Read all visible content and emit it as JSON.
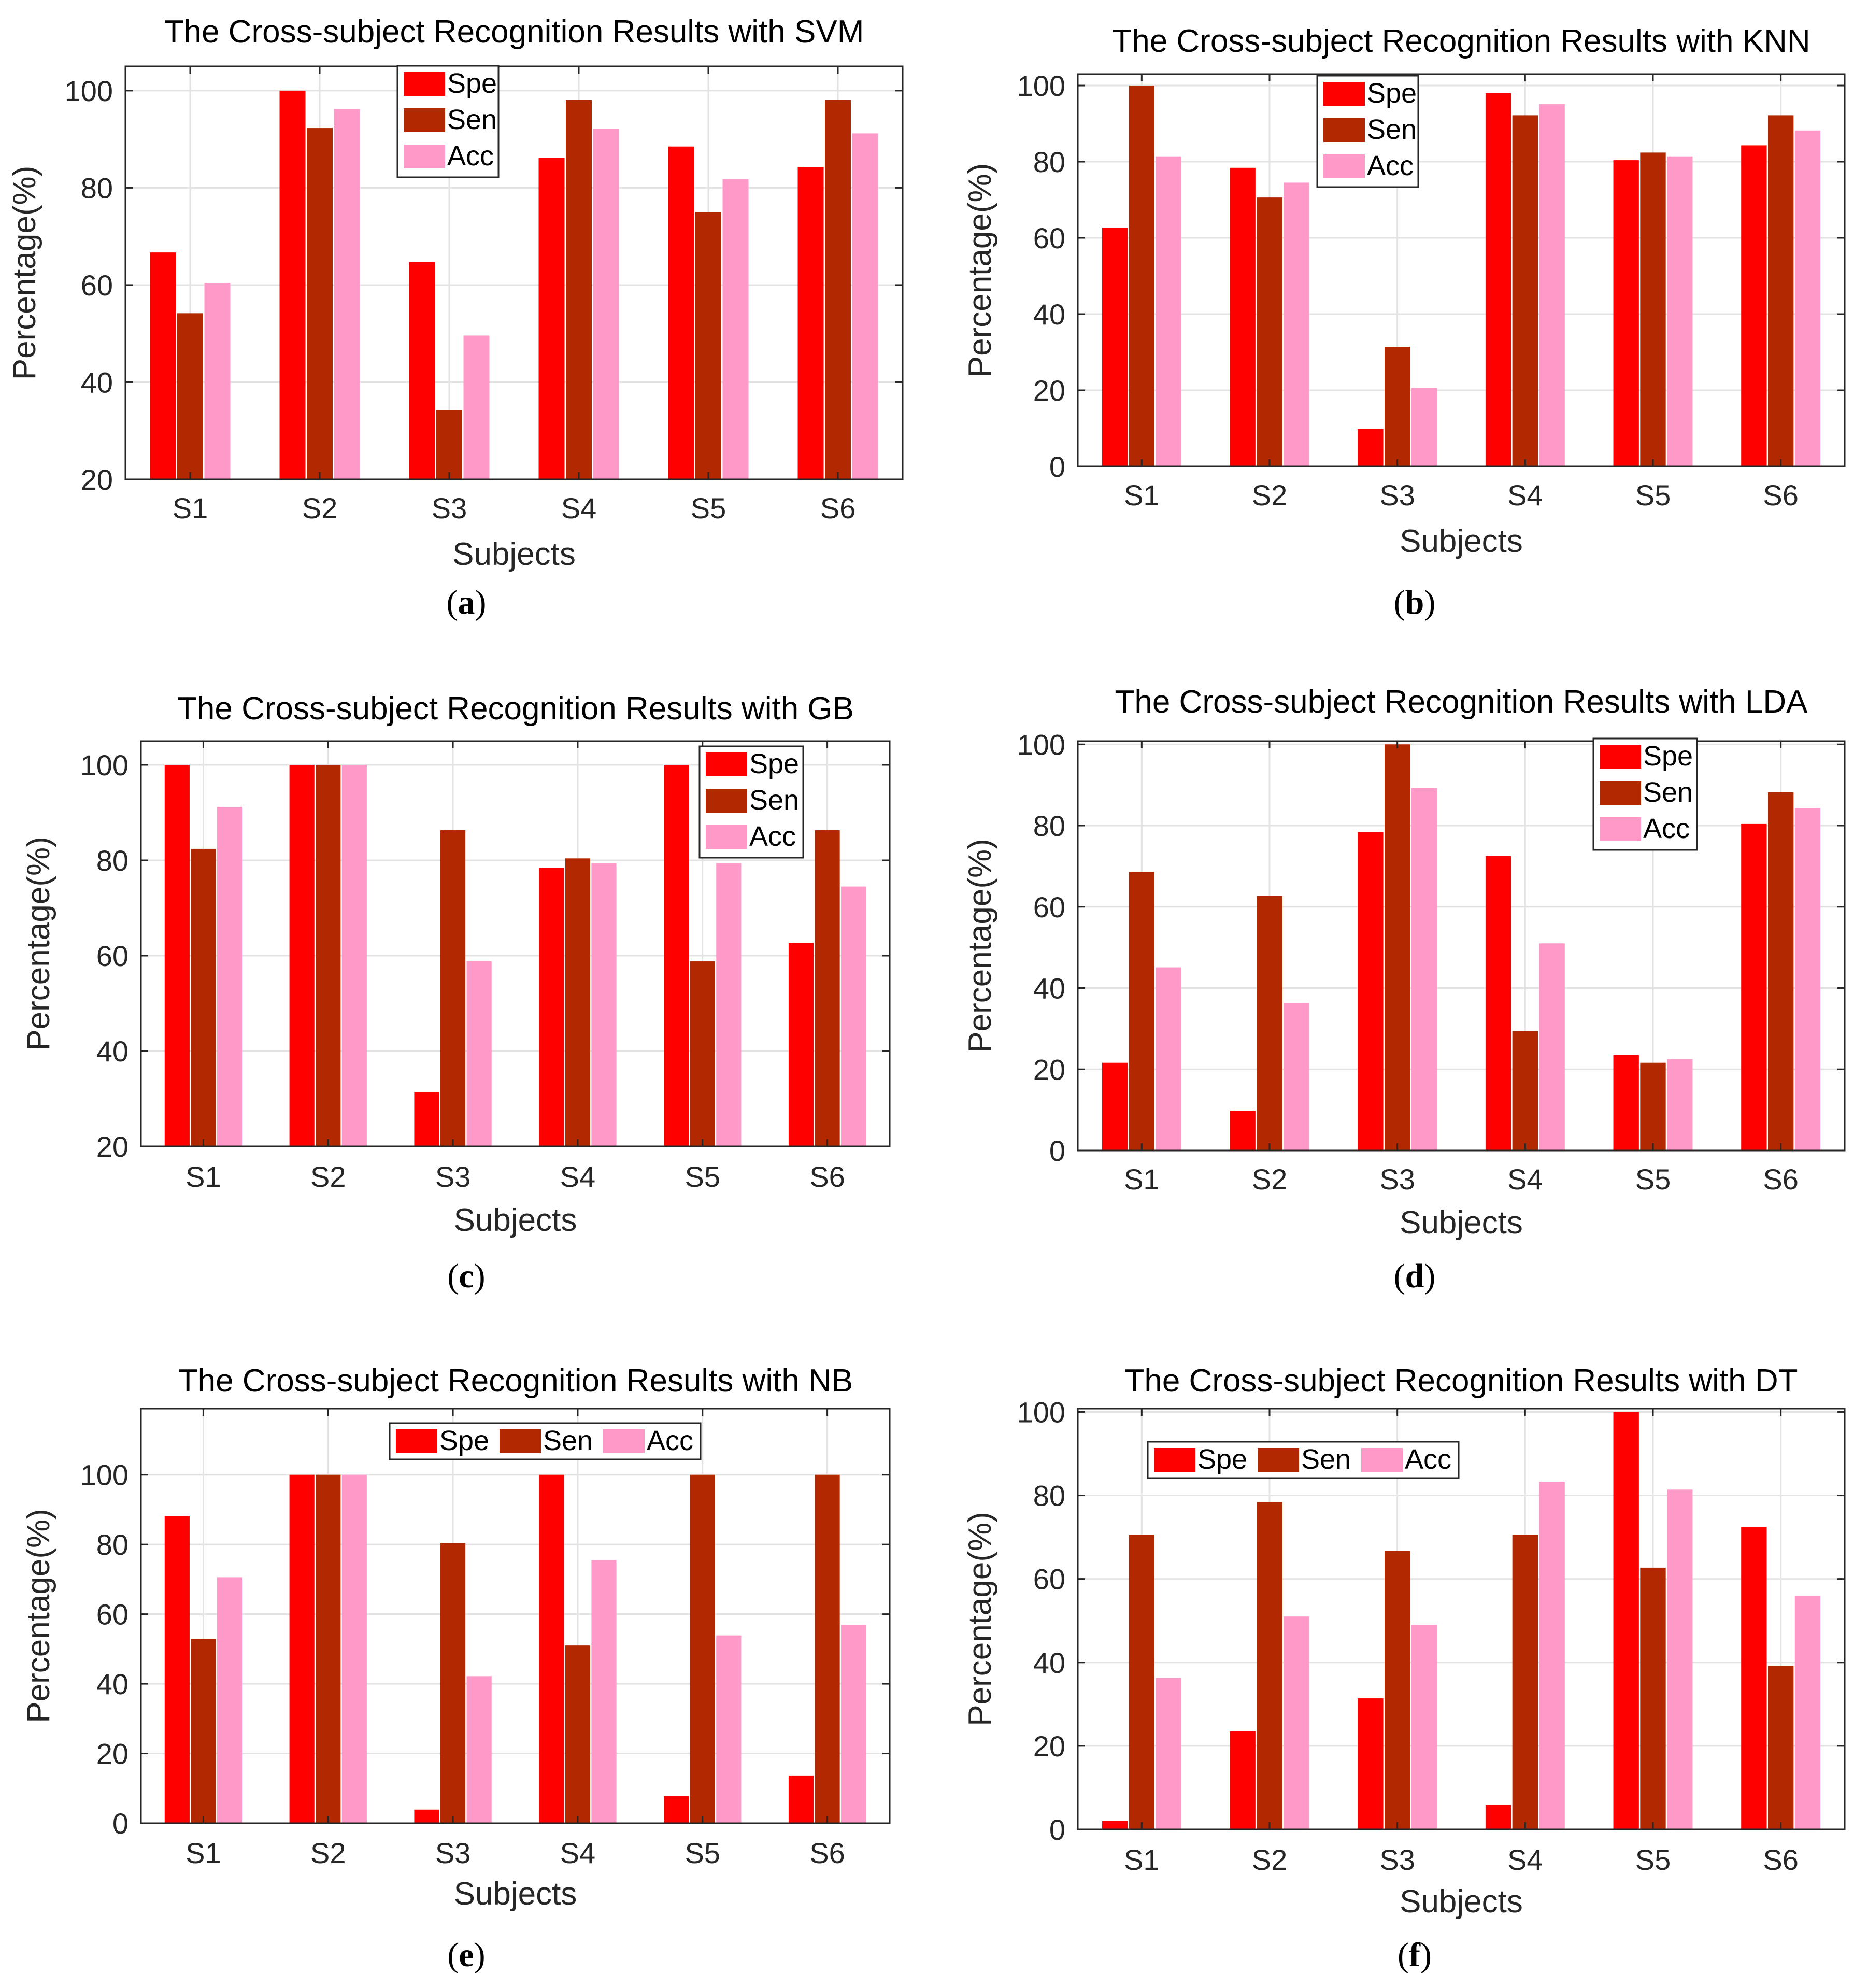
{
  "chart_data": [
    {
      "type": "bar",
      "panel_label": "a",
      "title": "The Cross-subject Recognition Results with SVM",
      "xlabel": "Subjects",
      "ylabel": "Percentage(%)",
      "categories": [
        "S1",
        "S2",
        "S3",
        "S4",
        "S5",
        "S6"
      ],
      "ylim": [
        20,
        105
      ],
      "yticks": [
        20,
        40,
        60,
        80,
        100
      ],
      "legend": {
        "orientation": "vertical",
        "placement": "top-center"
      },
      "series": [
        {
          "name": "Spe",
          "color": "#ff0000",
          "values": [
            66.7,
            100,
            64.7,
            86.2,
            88.5,
            84.3
          ]
        },
        {
          "name": "Sen",
          "color": "#b22800",
          "values": [
            54.2,
            92.3,
            34.2,
            98.1,
            75.0,
            98.1
          ]
        },
        {
          "name": "Acc",
          "color": "#ff99c8",
          "values": [
            60.4,
            96.2,
            49.6,
            92.2,
            81.8,
            91.2
          ]
        }
      ]
    },
    {
      "type": "bar",
      "panel_label": "b",
      "title": "The Cross-subject Recognition Results with KNN",
      "xlabel": "Subjects",
      "ylabel": "Percentage(%)",
      "categories": [
        "S1",
        "S2",
        "S3",
        "S4",
        "S5",
        "S6"
      ],
      "ylim": [
        0,
        103
      ],
      "yticks": [
        0,
        20,
        40,
        60,
        80,
        100
      ],
      "legend": {
        "orientation": "vertical",
        "placement": "top-center"
      },
      "series": [
        {
          "name": "Spe",
          "color": "#ff0000",
          "values": [
            62.7,
            78.4,
            9.8,
            98.0,
            80.4,
            84.3
          ]
        },
        {
          "name": "Sen",
          "color": "#b22800",
          "values": [
            100,
            70.6,
            31.4,
            92.2,
            82.4,
            92.2
          ]
        },
        {
          "name": "Acc",
          "color": "#ff99c8",
          "values": [
            81.4,
            74.5,
            20.6,
            95.1,
            81.4,
            88.2
          ]
        }
      ]
    },
    {
      "type": "bar",
      "panel_label": "c",
      "title": "The Cross-subject Recognition Results with GB",
      "xlabel": "Subjects",
      "ylabel": "Percentage(%)",
      "categories": [
        "S1",
        "S2",
        "S3",
        "S4",
        "S5",
        "S6"
      ],
      "ylim": [
        20,
        105
      ],
      "yticks": [
        20,
        40,
        60,
        80,
        100
      ],
      "legend": {
        "orientation": "vertical",
        "placement": "top-right"
      },
      "series": [
        {
          "name": "Spe",
          "color": "#ff0000",
          "values": [
            100,
            100,
            31.4,
            78.4,
            100,
            62.7
          ]
        },
        {
          "name": "Sen",
          "color": "#b22800",
          "values": [
            82.4,
            100,
            86.3,
            80.4,
            58.8,
            86.3
          ]
        },
        {
          "name": "Acc",
          "color": "#ff99c8",
          "values": [
            91.2,
            100,
            58.8,
            79.4,
            79.4,
            74.5
          ]
        }
      ]
    },
    {
      "type": "bar",
      "panel_label": "d",
      "title": "The Cross-subject Recognition Results with LDA",
      "xlabel": "Subjects",
      "ylabel": "Percentage(%)",
      "categories": [
        "S1",
        "S2",
        "S3",
        "S4",
        "S5",
        "S6"
      ],
      "ylim": [
        0,
        100.8
      ],
      "yticks": [
        0,
        20,
        40,
        60,
        80,
        100
      ],
      "legend": {
        "orientation": "vertical",
        "placement": "top-right"
      },
      "series": [
        {
          "name": "Spe",
          "color": "#ff0000",
          "values": [
            21.6,
            9.8,
            78.4,
            72.5,
            23.5,
            80.4
          ]
        },
        {
          "name": "Sen",
          "color": "#b22800",
          "values": [
            68.6,
            62.7,
            100,
            29.4,
            21.6,
            88.2
          ]
        },
        {
          "name": "Acc",
          "color": "#ff99c8",
          "values": [
            45.1,
            36.3,
            89.2,
            51.0,
            22.5,
            84.3
          ]
        }
      ]
    },
    {
      "type": "bar",
      "panel_label": "e",
      "title": "The Cross-subject Recognition Results with NB",
      "xlabel": "Subjects",
      "ylabel": "Percentage(%)",
      "categories": [
        "S1",
        "S2",
        "S3",
        "S4",
        "S5",
        "S6"
      ],
      "ylim": [
        0,
        119
      ],
      "yticks": [
        0,
        20,
        40,
        60,
        80,
        100
      ],
      "legend": {
        "orientation": "horizontal",
        "placement": "top-center"
      },
      "series": [
        {
          "name": "Spe",
          "color": "#ff0000",
          "values": [
            88.2,
            100,
            3.9,
            100,
            7.8,
            13.7
          ]
        },
        {
          "name": "Sen",
          "color": "#b22800",
          "values": [
            52.9,
            100,
            80.4,
            51.0,
            100,
            100
          ]
        },
        {
          "name": "Acc",
          "color": "#ff99c8",
          "values": [
            70.6,
            100,
            42.2,
            75.5,
            53.9,
            56.9
          ]
        }
      ]
    },
    {
      "type": "bar",
      "panel_label": "f",
      "title": "The Cross-subject Recognition Results with DT",
      "xlabel": "Subjects",
      "ylabel": "Percentage(%)",
      "categories": [
        "S1",
        "S2",
        "S3",
        "S4",
        "S5",
        "S6"
      ],
      "ylim": [
        0,
        100.8
      ],
      "yticks": [
        0,
        20,
        40,
        60,
        80,
        100
      ],
      "legend": {
        "orientation": "horizontal",
        "placement": "top-left"
      },
      "series": [
        {
          "name": "Spe",
          "color": "#ff0000",
          "values": [
            2.0,
            23.5,
            31.4,
            5.9,
            100,
            72.5
          ]
        },
        {
          "name": "Sen",
          "color": "#b22800",
          "values": [
            70.6,
            78.4,
            66.7,
            70.6,
            62.7,
            39.2
          ]
        },
        {
          "name": "Acc",
          "color": "#ff99c8",
          "values": [
            36.3,
            51.0,
            49.0,
            83.3,
            81.4,
            55.9
          ]
        }
      ]
    }
  ],
  "captions": [
    "a",
    "b",
    "c",
    "d",
    "e",
    "f"
  ]
}
